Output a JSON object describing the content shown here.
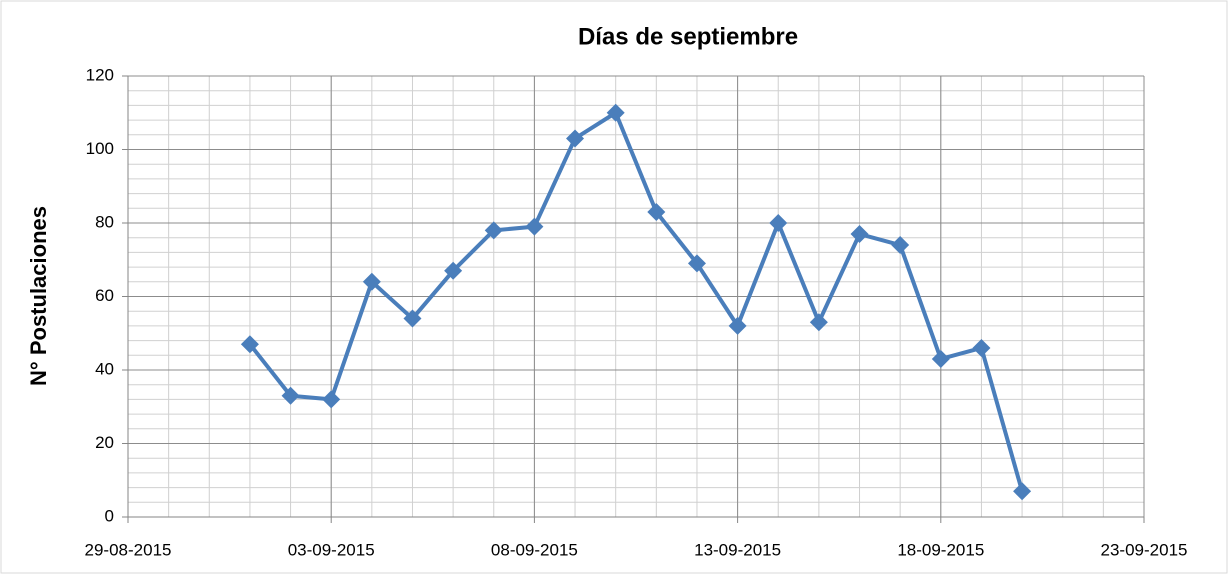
{
  "chart_data": {
    "type": "line",
    "title": "Días de septiembre",
    "y_label": "N° Postulaciones",
    "x": [
      "01-09-2015",
      "02-09-2015",
      "03-09-2015",
      "04-09-2015",
      "05-09-2015",
      "06-09-2015",
      "07-09-2015",
      "08-09-2015",
      "09-09-2015",
      "10-09-2015",
      "11-09-2015",
      "12-09-2015",
      "13-09-2015",
      "14-09-2015",
      "15-09-2015",
      "16-09-2015",
      "17-09-2015",
      "18-09-2015",
      "19-09-2015",
      "20-09-2015"
    ],
    "values": [
      47,
      33,
      32,
      64,
      54,
      67,
      78,
      79,
      103,
      110,
      83,
      69,
      52,
      80,
      53,
      77,
      74,
      43,
      46,
      7
    ],
    "color": "#4a7ebb",
    "xlim": [
      "29-08-2015",
      "23-09-2015"
    ],
    "xticks": [
      "29-08-2015",
      "03-09-2015",
      "08-09-2015",
      "13-09-2015",
      "18-09-2015",
      "23-09-2015"
    ],
    "ylim": [
      0,
      120
    ],
    "yticks": [
      0,
      20,
      40,
      60,
      80,
      100,
      120
    ],
    "grid": true
  }
}
